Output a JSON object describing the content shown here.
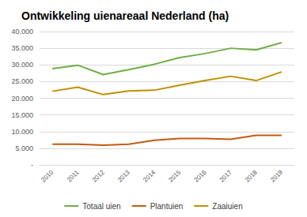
{
  "chart_data": {
    "type": "line",
    "title": "Ontwikkeling uienareaal Nederland (ha)",
    "categories": [
      "2010",
      "2011",
      "2012",
      "2013",
      "2014",
      "2015",
      "2016",
      "2017",
      "2018",
      "2019"
    ],
    "series": [
      {
        "name": "Totaal uien",
        "color": "#70ad47",
        "values": [
          28900,
          29900,
          27100,
          28600,
          30200,
          32200,
          33400,
          35000,
          34500,
          36700
        ]
      },
      {
        "name": "Plantuien",
        "color": "#c55a11",
        "values": [
          6200,
          6200,
          5900,
          6200,
          7400,
          7900,
          7900,
          7700,
          8900,
          8900
        ]
      },
      {
        "name": "Zaaiuien",
        "color": "#bf9000",
        "values": [
          22100,
          23300,
          21100,
          22200,
          22400,
          23900,
          25300,
          26600,
          25300,
          27900
        ]
      }
    ],
    "ylim": [
      0,
      40000
    ],
    "yticks": [
      {
        "value": 0,
        "label": "-"
      },
      {
        "value": 5000,
        "label": "5.000"
      },
      {
        "value": 10000,
        "label": "10.000"
      },
      {
        "value": 15000,
        "label": "15.000"
      },
      {
        "value": 20000,
        "label": "20.000"
      },
      {
        "value": 25000,
        "label": "25.000"
      },
      {
        "value": 30000,
        "label": "30.000"
      },
      {
        "value": 35000,
        "label": "35.000"
      },
      {
        "value": 40000,
        "label": "40.000"
      }
    ],
    "grid": true,
    "legend": "bottom"
  }
}
